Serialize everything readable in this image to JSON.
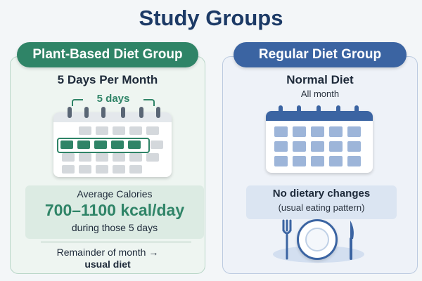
{
  "title": "Study Groups",
  "plant": {
    "group_label": "Plant-Based Diet Group",
    "frequency": "5 Days Per Month",
    "days_label": "5 days",
    "calorie_heading": "Average Calories",
    "calorie_value": "700–1100 kcal/day",
    "calorie_note": "during those 5 days",
    "remainder_line1": "Remainder of month →",
    "remainder_line2": "usual diet",
    "accent_color": "#2f8467"
  },
  "regular": {
    "group_label": "Regular Diet Group",
    "diet": "Normal Diet",
    "duration": "All month",
    "change_heading": "No dietary changes",
    "change_note": "(usual eating pattern)",
    "accent_color": "#3b64a2"
  },
  "icons": {
    "left_calendar": "calendar-icon",
    "right_calendar": "calendar-icon",
    "fork": "fork-icon",
    "plate": "plate-icon",
    "knife": "knife-icon"
  }
}
